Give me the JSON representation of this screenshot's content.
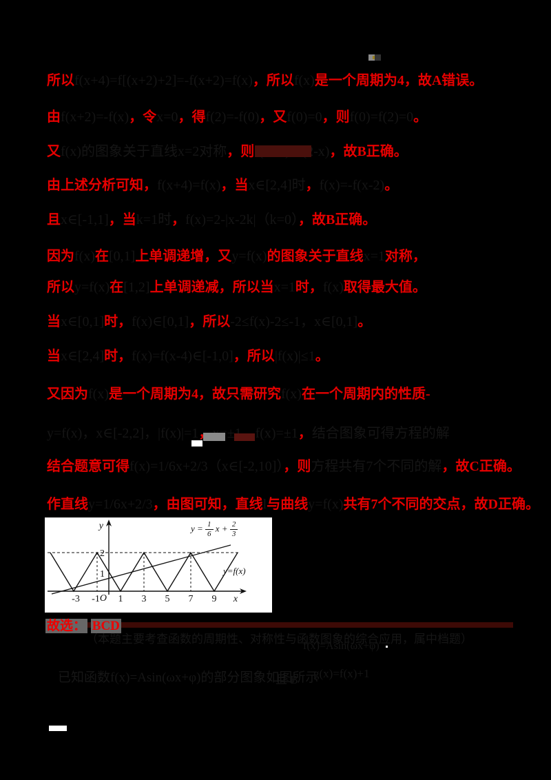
{
  "answer": {
    "prefix": "故选：",
    "value": "BCD"
  },
  "lines": [
    [
      {
        "c": "r",
        "t": "所以"
      },
      {
        "c": "d",
        "t": "f(x+4)=f[(x+2)+2]=-f(x+2)=f(x)"
      },
      {
        "c": "r",
        "t": "，所以"
      },
      {
        "c": "d",
        "t": "f(x)"
      },
      {
        "c": "r",
        "t": "是一个周期为4，故A错误。"
      }
    ],
    [
      {
        "c": "r",
        "t": "由"
      },
      {
        "c": "d",
        "t": "f(x+2)=-f(x)"
      },
      {
        "c": "r",
        "t": "，令"
      },
      {
        "c": "d",
        "t": "x=0"
      },
      {
        "c": "r",
        "t": "，得"
      },
      {
        "c": "d",
        "t": "f(2)=-f(0)"
      },
      {
        "c": "r",
        "t": "，又"
      },
      {
        "c": "d",
        "t": "f(0)=0"
      },
      {
        "c": "r",
        "t": "，则"
      },
      {
        "c": "d",
        "t": "f(0)=f(2)=0"
      },
      {
        "c": "r",
        "t": "。"
      }
    ],
    [
      {
        "c": "r",
        "t": "又"
      },
      {
        "c": "d",
        "t": "f(x)的图象关于直线x=2对称"
      },
      {
        "c": "r",
        "t": "，则"
      },
      {
        "c": "d",
        "t": "f(2+x)=f(2-x)"
      },
      {
        "c": "r",
        "t": "，故B正确。"
      }
    ],
    [
      {
        "c": "r",
        "t": "由上述分析可知，"
      },
      {
        "c": "d",
        "t": "f(x+4)=f(x)"
      },
      {
        "c": "r",
        "t": "，当"
      },
      {
        "c": "d",
        "t": "x∈[2,4]时"
      },
      {
        "c": "r",
        "t": "，"
      },
      {
        "c": "d",
        "t": "f(x)=-f(x-2)"
      },
      {
        "c": "r",
        "t": "。"
      }
    ],
    [
      {
        "c": "r",
        "t": "且"
      },
      {
        "c": "d",
        "t": "x∈[-1,1]"
      },
      {
        "c": "r",
        "t": "，当"
      },
      {
        "c": "d",
        "t": "k=1时"
      },
      {
        "c": "r",
        "t": "，"
      },
      {
        "c": "d",
        "t": "f(x)=2-|x-2k|（k=0）"
      },
      {
        "c": "r",
        "t": "，"
      },
      {
        "c": "r",
        "t": "故B正确。"
      }
    ],
    [
      {
        "c": "r",
        "t": "因为"
      },
      {
        "c": "d",
        "t": "f(x)"
      },
      {
        "c": "r",
        "t": "在"
      },
      {
        "c": "d",
        "t": "[0,1]"
      },
      {
        "c": "r",
        "t": "上单调递增，又"
      },
      {
        "c": "d",
        "t": "y=f(x)"
      },
      {
        "c": "r",
        "t": "的图象关于直线"
      },
      {
        "c": "d",
        "t": "x=1"
      },
      {
        "c": "r",
        "t": "对称，"
      }
    ],
    [
      {
        "c": "r",
        "t": "所以"
      },
      {
        "c": "d",
        "t": "y=f(x)"
      },
      {
        "c": "r",
        "t": "在"
      },
      {
        "c": "d",
        "t": "[1,2]"
      },
      {
        "c": "r",
        "t": "上单调递减，所以当"
      },
      {
        "c": "d",
        "t": "x=1"
      },
      {
        "c": "r",
        "t": "时，"
      },
      {
        "c": "d",
        "t": "f(x)"
      },
      {
        "c": "r",
        "t": "取得最大值。"
      }
    ],
    [
      {
        "c": "r",
        "t": "当"
      },
      {
        "c": "d",
        "t": "x∈[0,1]"
      },
      {
        "c": "r",
        "t": "时，"
      },
      {
        "c": "d",
        "t": "f(x)∈[0,1]"
      },
      {
        "c": "r",
        "t": "，所以"
      },
      {
        "c": "d",
        "t": "-2≤f(x)-2≤-1，x∈[0,1]"
      },
      {
        "c": "r",
        "t": "。"
      }
    ],
    [
      {
        "c": "r",
        "t": "当"
      },
      {
        "c": "d",
        "t": "x∈[2,4]"
      },
      {
        "c": "r",
        "t": "时，"
      },
      {
        "c": "d",
        "t": "f(x)=f(x-4)∈[-1,0]"
      },
      {
        "c": "r",
        "t": "，所以"
      },
      {
        "c": "d",
        "t": "|f(x)|≤1"
      },
      {
        "c": "r",
        "t": "。"
      }
    ],
    [
      {
        "c": "r",
        "t": "又因为"
      },
      {
        "c": "d",
        "t": "f(x)"
      },
      {
        "c": "r",
        "t": "是一个周期为4，故只需研究"
      },
      {
        "c": "d",
        "t": "f(x)"
      },
      {
        "c": "r",
        "t": "在一个周期内的性质-"
      }
    ],
    [
      {
        "c": "d",
        "t": "y=f(x)，x∈[-2,2]，|f(x)|=1"
      },
      {
        "c": "r",
        "t": "，"
      },
      {
        "c": "d",
        "t": "x=±1，f(x)=±1"
      },
      {
        "c": "r",
        "t": "，"
      },
      {
        "c": "d",
        "t": "结合图象可得方程的解"
      }
    ],
    [
      {
        "c": "r",
        "t": "结合题意可得"
      },
      {
        "c": "d",
        "t": "f(x)=1/6x+2/3（x∈[-2,10]）"
      },
      {
        "c": "r",
        "t": "，则"
      },
      {
        "c": "d",
        "t": "方程共有7个不同的解"
      },
      {
        "c": "r",
        "t": "，故C正确。"
      }
    ],
    [
      {
        "c": "r",
        "t": "作直线"
      },
      {
        "c": "d",
        "t": "y=1/6x+2/3"
      },
      {
        "c": "r",
        "t": "，由图可知，直线"
      },
      {
        "c": "d",
        "t": "l"
      },
      {
        "c": "r",
        "t": "与曲线"
      },
      {
        "c": "d",
        "t": "y=f(x)"
      },
      {
        "c": "r",
        "t": "共有7个不同的交点，故D正确。"
      }
    ]
  ],
  "figure": {
    "ylabel": "y",
    "xlabel": "x",
    "origin": "O",
    "yticks": [
      "1",
      "2"
    ],
    "xticks": [
      "-3",
      "-1",
      "1",
      "3",
      "5",
      "7",
      "9"
    ],
    "curve_label": "y=f(x)",
    "line_equation": {
      "pre": "y =",
      "n1": "1",
      "d1": "6",
      "mid": "x +",
      "n2": "2",
      "d2": "3"
    }
  },
  "chart_data": {
    "type": "line",
    "title": "",
    "xlabel": "x",
    "ylabel": "y",
    "xlim": [
      -5.5,
      11
    ],
    "ylim": [
      0,
      2.4
    ],
    "series": [
      {
        "name": "y=f(x)",
        "x": [
          -5,
          -3,
          -1,
          1,
          3,
          5,
          7,
          9,
          11
        ],
        "values": [
          2,
          0,
          2,
          0,
          2,
          0,
          2,
          0,
          2
        ]
      },
      {
        "name": "y=1/6x+2/3",
        "x": [
          -4,
          10
        ],
        "values": [
          0,
          2.333
        ]
      }
    ],
    "annotations": [
      "虚线 y=2",
      "虚线 x=-1, x=3, x=7"
    ]
  },
  "faint": {
    "note_row": "（本题主要考查函数的周期性、对称性与函数图象的综合应用，属中档题）",
    "formula_right": "f(x)=Asin(ωx+φ)",
    "next_left": "已知函数f(x)=Asin(ωx+φ)的部分图象如图所示",
    "next_mid": "且 B",
    "next_right": "g(x)=f(x)+1"
  },
  "colors": {
    "accent_red": "#e60000",
    "divider_maroon": "#3d0a06",
    "graph_bg": "#ffffff",
    "page_bg": "#000000"
  }
}
